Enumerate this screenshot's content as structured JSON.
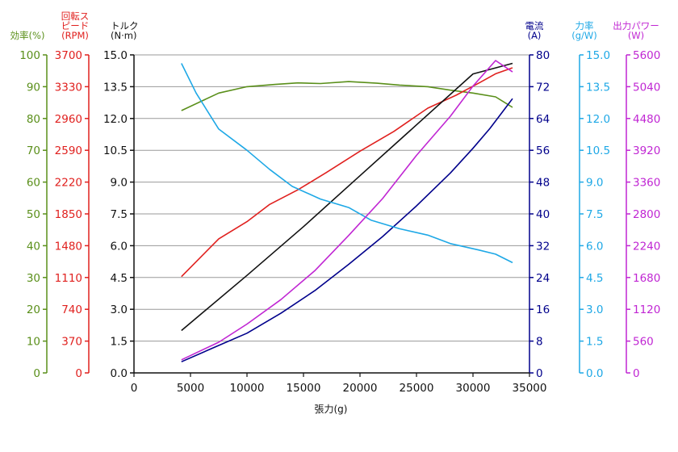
{
  "chart_data": {
    "type": "line",
    "xlabel": "張力(g)",
    "x_ticks": [
      "0",
      "5000",
      "10000",
      "15000",
      "20000",
      "25000",
      "30000",
      "35000"
    ],
    "xlim": [
      0,
      35000
    ],
    "axes": [
      {
        "key": "eff",
        "title_lines": [
          "効率(%)"
        ],
        "color": "#5a8f1a",
        "min": 0,
        "max": 100,
        "ticks": [
          "0",
          "10",
          "20",
          "30",
          "40",
          "50",
          "60",
          "70",
          "80",
          "90",
          "100"
        ]
      },
      {
        "key": "rpm",
        "title_lines": [
          "回転ス",
          "ピード",
          "(RPM)"
        ],
        "color": "#e0201e",
        "min": 0,
        "max": 3700,
        "ticks": [
          "0",
          "370",
          "740",
          "1110",
          "1480",
          "1850",
          "2220",
          "2590",
          "2960",
          "3330",
          "3700"
        ]
      },
      {
        "key": "torque",
        "title_lines": [
          "トルク",
          "(N·m)"
        ],
        "color": "#111111",
        "min": 0,
        "max": 15,
        "ticks": [
          "0.0",
          "1.5",
          "3.0",
          "4.5",
          "6.0",
          "7.5",
          "9.0",
          "10.5",
          "12.0",
          "13.5",
          "15.0"
        ]
      },
      {
        "key": "current",
        "title_lines": [
          "電流",
          "(A)"
        ],
        "color": "#00008b",
        "min": 0,
        "max": 80,
        "ticks": [
          "0",
          "8",
          "16",
          "24",
          "32",
          "40",
          "48",
          "56",
          "64",
          "72",
          "80"
        ]
      },
      {
        "key": "force",
        "title_lines": [
          "力率",
          "(g/W)"
        ],
        "color": "#1ea8e6",
        "min": 0,
        "max": 15,
        "ticks": [
          "0.0",
          "1.5",
          "3.0",
          "4.5",
          "6.0",
          "7.5",
          "9.0",
          "10.5",
          "12.0",
          "13.5",
          "15.0"
        ]
      },
      {
        "key": "power",
        "title_lines": [
          "出力パワー",
          "(W)"
        ],
        "color": "#c026d3",
        "min": 0,
        "max": 5600,
        "ticks": [
          "0",
          "560",
          "1120",
          "1680",
          "2240",
          "2800",
          "3360",
          "3920",
          "4480",
          "5040",
          "5600"
        ]
      }
    ],
    "series": [
      {
        "axis": "eff",
        "color": "#5a8f1a",
        "x": [
          4200,
          7500,
          10000,
          12500,
          14500,
          16500,
          19000,
          21500,
          23500,
          26000,
          28000,
          30000,
          32000,
          33500
        ],
        "y": [
          82.5,
          88,
          90,
          90.7,
          91.2,
          91,
          91.6,
          91.1,
          90.5,
          90,
          88.9,
          88,
          86.8,
          83.5
        ]
      },
      {
        "axis": "rpm",
        "color": "#e0201e",
        "x": [
          4200,
          7500,
          10000,
          12000,
          14500,
          17000,
          20000,
          23000,
          26000,
          28500,
          30500,
          32000,
          33500
        ],
        "y": [
          1120,
          1560,
          1760,
          1960,
          2130,
          2330,
          2580,
          2810,
          3080,
          3230,
          3370,
          3480,
          3550
        ]
      },
      {
        "axis": "torque",
        "color": "#111111",
        "x": [
          4200,
          10000,
          15000,
          20000,
          25000,
          30000,
          33500
        ],
        "y": [
          2.0,
          4.6,
          6.9,
          9.3,
          11.7,
          14.1,
          14.6
        ]
      },
      {
        "axis": "current",
        "color": "#00008b",
        "x": [
          4200,
          7000,
          10000,
          13000,
          16000,
          19000,
          22000,
          25000,
          28000,
          30000,
          31500,
          33500
        ],
        "y": [
          2.8,
          6.3,
          10,
          15,
          20.7,
          27.3,
          34.3,
          42,
          50.3,
          56.5,
          61.5,
          69
        ]
      },
      {
        "axis": "force",
        "color": "#1ea8e6",
        "x": [
          4200,
          5500,
          7500,
          10000,
          12000,
          14000,
          16500,
          19000,
          21000,
          23500,
          26000,
          28000,
          30500,
          32000,
          33500
        ],
        "y": [
          14.6,
          13.2,
          11.5,
          10.5,
          9.6,
          8.8,
          8.2,
          7.8,
          7.2,
          6.8,
          6.5,
          6.1,
          5.8,
          5.6,
          5.2
        ]
      },
      {
        "axis": "power",
        "color": "#c026d3",
        "x": [
          4200,
          7500,
          10000,
          13000,
          16000,
          19000,
          22000,
          25000,
          28000,
          30000,
          32000,
          33500
        ],
        "y": [
          230,
          540,
          860,
          1290,
          1800,
          2420,
          3070,
          3830,
          4520,
          5050,
          5500,
          5300
        ]
      }
    ]
  }
}
